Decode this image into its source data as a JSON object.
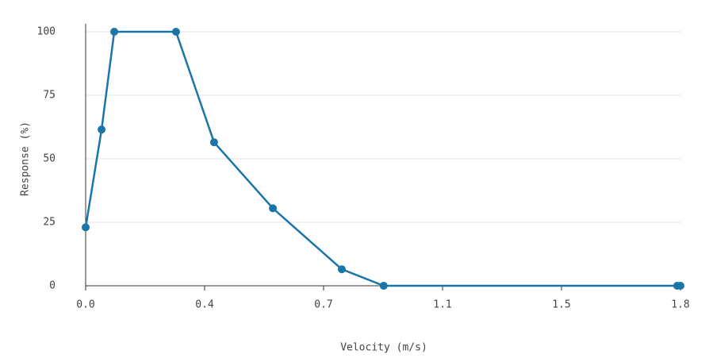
{
  "chart_data": {
    "type": "line",
    "x_label": "Velocity (m/s)",
    "y_label": "Response (%)",
    "x": [
      0,
      0.049,
      0.088,
      0.278,
      0.395,
      0.576,
      0.788,
      0.917,
      1.82,
      1.83
    ],
    "series": [
      {
        "color": "#1b75a8",
        "values": [
          23,
          61.5,
          100,
          100,
          56.5,
          30.5,
          6.5,
          0,
          0,
          0
        ]
      }
    ],
    "xlim": [
      0,
      1.83
    ],
    "xticks": [
      {
        "value": 0,
        "label": "0.0"
      },
      {
        "value": 0.366,
        "label": "0.4"
      },
      {
        "value": 0.732,
        "label": "0.7"
      },
      {
        "value": 1.098,
        "label": "1.1"
      },
      {
        "value": 1.464,
        "label": "1.5"
      },
      {
        "value": 1.83,
        "label": "1.8"
      }
    ],
    "ylim": [
      0,
      100
    ],
    "yticks": [
      0,
      25,
      50,
      75,
      100
    ],
    "grid": true
  }
}
